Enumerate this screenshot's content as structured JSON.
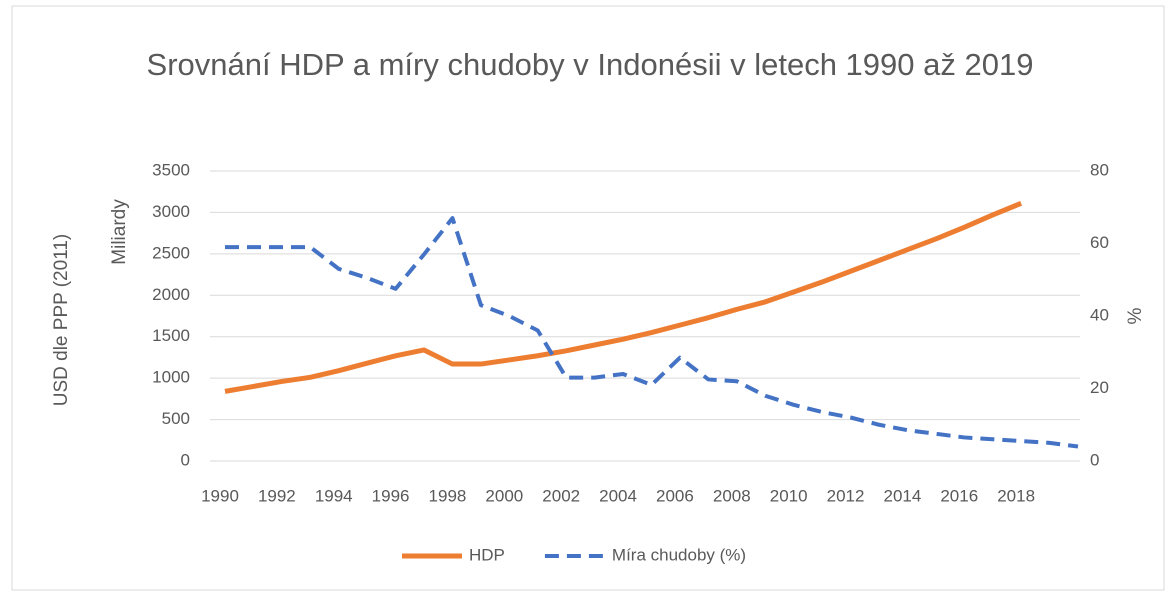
{
  "chart_data": {
    "type": "line",
    "title": "Srovnání HDP a míry chudoby v Indonésii v letech 1990 až 2019",
    "y_label": "USD dle PPP (2011)",
    "y_units_label": "Miliardy",
    "y2_label": "%",
    "categories": [
      "1990",
      null,
      "1992",
      null,
      "1994",
      null,
      "1996",
      null,
      "1998",
      null,
      "2000",
      null,
      "2002",
      null,
      "2004",
      null,
      "2006",
      null,
      "2008",
      null,
      "2010",
      null,
      "2012",
      null,
      "2014",
      null,
      "2016",
      null,
      "2018",
      null,
      null
    ],
    "series": [
      {
        "name": "HDP",
        "color": "#ed7d31",
        "dash": false,
        "values": [
          840,
          900,
          960,
          1010,
          1090,
          1180,
          1270,
          1340,
          1170,
          1170,
          1220,
          1270,
          1330,
          1400,
          1470,
          1550,
          1640,
          1730,
          1830,
          1920,
          2040,
          2160,
          2290,
          2420,
          2550,
          2680,
          2820,
          2970,
          3110,
          null,
          null
        ]
      },
      {
        "name": "Míra chudoby (%)",
        "color": "#4472c4",
        "dash": true,
        "axis": "y2",
        "values": [
          59,
          59,
          59,
          59,
          53,
          50.5,
          47.5,
          57,
          67,
          43,
          40,
          36,
          23,
          23,
          24,
          21,
          28.5,
          22.5,
          22,
          18,
          15.5,
          13.5,
          12,
          10,
          8.5,
          7.5,
          6.5,
          6,
          5.5,
          5,
          4
        ]
      }
    ],
    "ylim": [
      0,
      3500
    ],
    "yticks": [
      0,
      500,
      1000,
      1500,
      2000,
      2500,
      3000,
      3500
    ],
    "y2lim": [
      0,
      80
    ],
    "y2ticks": [
      0,
      20,
      40,
      60,
      80
    ],
    "grid": true,
    "legend": "bottom"
  }
}
